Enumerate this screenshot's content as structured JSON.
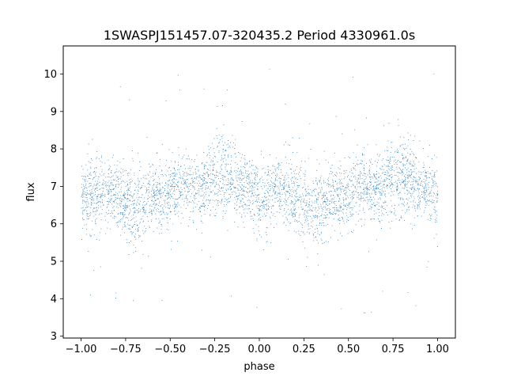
{
  "chart_data": {
    "type": "scatter",
    "title": "1SWASPJ151457.07-320435.2 Period 4330961.0s",
    "xlabel": "phase",
    "ylabel": "flux",
    "xlim": [
      -1.1,
      1.1
    ],
    "ylim": [
      2.95,
      10.75
    ],
    "xticks": [
      -1.0,
      -0.75,
      -0.5,
      -0.25,
      0.0,
      0.25,
      0.5,
      0.75,
      1.0
    ],
    "xtick_labels": [
      "−1.00",
      "−0.75",
      "−0.50",
      "−0.25",
      "0.00",
      "0.25",
      "0.50",
      "0.75",
      "1.00"
    ],
    "yticks": [
      3,
      4,
      5,
      6,
      7,
      8,
      9,
      10
    ],
    "ytick_labels": [
      "3",
      "4",
      "5",
      "6",
      "7",
      "8",
      "9",
      "10"
    ],
    "grid": false,
    "legend": "none",
    "series": [
      {
        "color": "#1f77b4",
        "marker_size": 0.8,
        "points_description_x": [
          -1.0,
          -0.95,
          -0.9,
          -0.85,
          -0.8,
          -0.75,
          -0.7,
          -0.65,
          -0.6,
          -0.55,
          -0.5,
          -0.45,
          -0.4,
          -0.35,
          -0.3,
          -0.25,
          -0.2,
          -0.15,
          -0.1,
          -0.05,
          0.0,
          0.05,
          0.1,
          0.15,
          0.2,
          0.25,
          0.3,
          0.35,
          0.4,
          0.45,
          0.5,
          0.55,
          0.6,
          0.65,
          0.7,
          0.75,
          0.8,
          0.85,
          0.9,
          0.95,
          1.0
        ],
        "median_flux": [
          6.7,
          6.8,
          6.9,
          6.8,
          6.7,
          6.6,
          6.4,
          6.5,
          6.8,
          6.7,
          6.8,
          7.0,
          7.0,
          6.9,
          7.0,
          7.2,
          7.3,
          7.1,
          7.0,
          6.9,
          6.7,
          6.8,
          6.9,
          6.8,
          6.7,
          6.6,
          6.4,
          6.5,
          6.8,
          6.7,
          6.8,
          7.0,
          7.0,
          6.9,
          7.0,
          7.2,
          7.3,
          7.1,
          7.0,
          6.9,
          6.7
        ],
        "spread": [
          0.9,
          0.9,
          0.8,
          0.8,
          0.8,
          0.9,
          1.0,
          0.9,
          0.8,
          0.8,
          0.8,
          0.8,
          0.8,
          0.8,
          0.8,
          0.9,
          1.0,
          0.9,
          0.8,
          0.8,
          0.9,
          0.9,
          0.8,
          0.8,
          0.8,
          0.9,
          1.0,
          0.9,
          0.8,
          0.8,
          0.8,
          0.8,
          0.8,
          0.8,
          0.8,
          0.9,
          1.0,
          0.9,
          0.8,
          0.8,
          0.9
        ]
      }
    ]
  }
}
